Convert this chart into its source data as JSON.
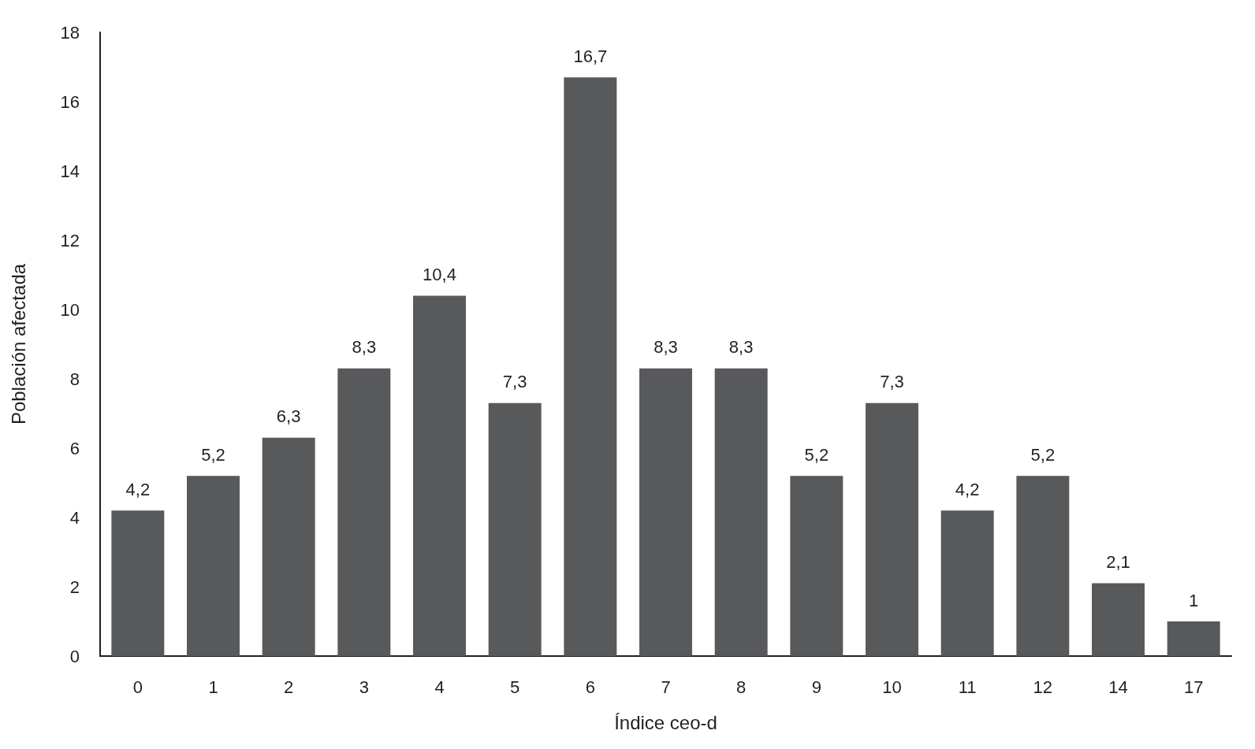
{
  "chart_data": {
    "type": "bar",
    "xlabel": "Índice ceo-d",
    "ylabel": "Población afectada",
    "categories": [
      "0",
      "1",
      "2",
      "3",
      "4",
      "5",
      "6",
      "7",
      "8",
      "9",
      "10",
      "11",
      "12",
      "14",
      "17"
    ],
    "values": [
      4.2,
      5.2,
      6.3,
      8.3,
      10.4,
      7.3,
      16.7,
      8.3,
      8.3,
      5.2,
      7.3,
      4.2,
      5.2,
      2.1,
      1
    ],
    "value_labels": [
      "4,2",
      "5,2",
      "6,3",
      "8,3",
      "10,4",
      "7,3",
      "16,7",
      "8,3",
      "8,3",
      "5,2",
      "7,3",
      "4,2",
      "5,2",
      "2,1",
      "1"
    ],
    "color": "#58595b",
    "ylim": [
      0,
      18
    ],
    "yticks": [
      0,
      2,
      4,
      6,
      8,
      10,
      12,
      14,
      16,
      18
    ],
    "grid": false
  }
}
